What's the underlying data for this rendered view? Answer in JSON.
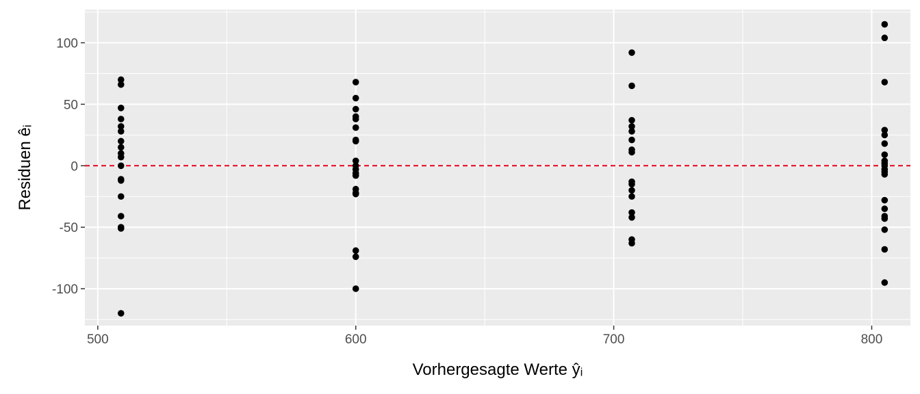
{
  "chart_data": {
    "type": "scatter",
    "title": "",
    "xlabel": "Vorhergesagte Werte ŷᵢ",
    "ylabel": "Residuen êᵢ",
    "xlim": [
      495,
      815
    ],
    "ylim": [
      -130,
      127
    ],
    "x_ticks": [
      500,
      600,
      700,
      800
    ],
    "y_ticks": [
      -100,
      -50,
      0,
      50,
      100
    ],
    "grid": true,
    "legend": "none",
    "reference_line": {
      "y": 0,
      "style": "dashed",
      "color": "#e8001c"
    },
    "colors": {
      "panel": "#ebebeb",
      "grid": "#ffffff",
      "point": "#000000",
      "ref_line": "#e8001c"
    },
    "series": [
      {
        "points": [
          [
            509,
            70
          ],
          [
            509,
            66
          ],
          [
            509,
            47
          ],
          [
            509,
            38
          ],
          [
            509,
            32
          ],
          [
            509,
            28
          ],
          [
            509,
            20
          ],
          [
            509,
            15
          ],
          [
            509,
            10
          ],
          [
            509,
            7
          ],
          [
            509,
            0
          ],
          [
            509,
            -11
          ],
          [
            509,
            -12
          ],
          [
            509,
            -25
          ],
          [
            509,
            -41
          ],
          [
            509,
            -50
          ],
          [
            509,
            -51
          ],
          [
            509,
            -120
          ],
          [
            600,
            68
          ],
          [
            600,
            55
          ],
          [
            600,
            46
          ],
          [
            600,
            40
          ],
          [
            600,
            38
          ],
          [
            600,
            31
          ],
          [
            600,
            21
          ],
          [
            600,
            20
          ],
          [
            600,
            4
          ],
          [
            600,
            0
          ],
          [
            600,
            -3
          ],
          [
            600,
            -6
          ],
          [
            600,
            -8
          ],
          [
            600,
            -19
          ],
          [
            600,
            -22
          ],
          [
            600,
            -23
          ],
          [
            600,
            -69
          ],
          [
            600,
            -74
          ],
          [
            600,
            -100
          ],
          [
            707,
            92
          ],
          [
            707,
            65
          ],
          [
            707,
            37
          ],
          [
            707,
            32
          ],
          [
            707,
            28
          ],
          [
            707,
            21
          ],
          [
            707,
            13
          ],
          [
            707,
            11
          ],
          [
            707,
            -13
          ],
          [
            707,
            -15
          ],
          [
            707,
            -20
          ],
          [
            707,
            -25
          ],
          [
            707,
            -38
          ],
          [
            707,
            -42
          ],
          [
            707,
            -60
          ],
          [
            707,
            -63
          ],
          [
            805,
            115
          ],
          [
            805,
            104
          ],
          [
            805,
            68
          ],
          [
            805,
            29
          ],
          [
            805,
            25
          ],
          [
            805,
            18
          ],
          [
            805,
            9
          ],
          [
            805,
            4
          ],
          [
            805,
            2
          ],
          [
            805,
            0
          ],
          [
            805,
            -3
          ],
          [
            805,
            -5
          ],
          [
            805,
            -7
          ],
          [
            805,
            -28
          ],
          [
            805,
            -35
          ],
          [
            805,
            -41
          ],
          [
            805,
            -43
          ],
          [
            805,
            -52
          ],
          [
            805,
            -68
          ],
          [
            805,
            -95
          ]
        ]
      }
    ]
  }
}
